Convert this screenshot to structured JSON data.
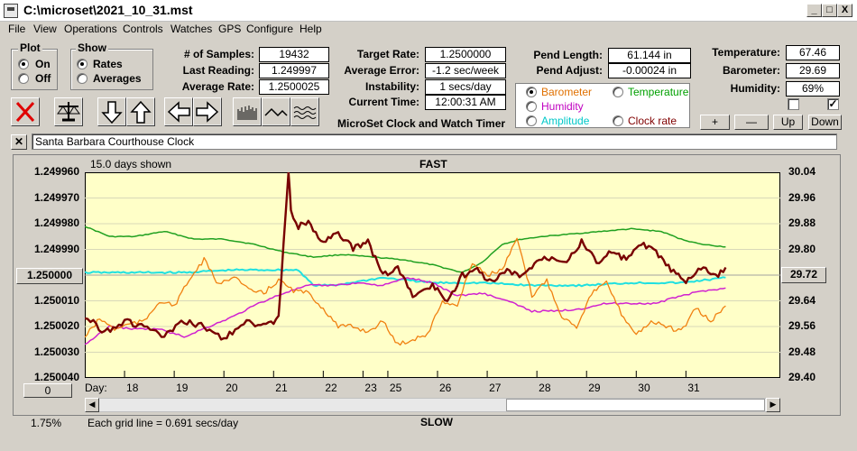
{
  "window": {
    "title": "C:\\microset\\2021_10_31.mst",
    "minimize": "_",
    "maximize": "□",
    "close": "X"
  },
  "menu": [
    "File",
    "View",
    "Operations",
    "Controls",
    "Watches",
    "GPS",
    "Configure",
    "Help"
  ],
  "plot_group": {
    "label": "Plot",
    "options": [
      "On",
      "Off"
    ],
    "selected": "On"
  },
  "show_group": {
    "label": "Show",
    "options": [
      "Rates",
      "Averages"
    ],
    "selected": "Rates"
  },
  "stats": {
    "samples_label": "# of Samples:",
    "samples_value": "19432",
    "last_label": "Last Reading:",
    "last_value": "1.249997",
    "avg_rate_label": "Average Rate:",
    "avg_rate_value": "1.2500025"
  },
  "rates": {
    "target_label": "Target Rate:",
    "target_value": "1.2500000",
    "error_label": "Average Error:",
    "error_value": "-1.2 sec/week",
    "instab_label": "Instability:",
    "instab_value": "1 secs/day",
    "time_label": "Current Time:",
    "time_value": "12:00:31 AM",
    "app_caption": "MicroSet Clock and Watch Timer"
  },
  "pendulum": {
    "length_label": "Pend Length:",
    "length_value": "61.144 in",
    "adjust_label": "Pend Adjust:",
    "adjust_value": "-0.00024 in"
  },
  "sensor_options": {
    "selected": "Barometer",
    "items": [
      {
        "label": "Barometer",
        "color": "#e07000"
      },
      {
        "label": "Temperature",
        "color": "#00a000"
      },
      {
        "label": "Humidity",
        "color": "#c000c0"
      },
      {
        "label": "Amplitude",
        "color": "#00c8c8"
      },
      {
        "label": "Clock rate",
        "color": "#800000"
      }
    ]
  },
  "environment": {
    "temp_label": "Temperature:",
    "temp_value": "67.46",
    "baro_label": "Barometer:",
    "baro_value": "29.69",
    "hum_label": "Humidity:",
    "hum_value": "69%",
    "check1": false,
    "check2": true
  },
  "scale_buttons": {
    "plus": "+",
    "minus": "—",
    "up": "Up",
    "down": "Down"
  },
  "clock_name": "Santa Barbara Courthouse Clock",
  "toolbar_icons": [
    "stop-icon",
    "balance-icon",
    "arrow-down-icon",
    "arrow-up-icon",
    "arrow-left-icon",
    "arrow-right-icon",
    "bars-icon",
    "wave-icon",
    "ripple-icon"
  ],
  "chart_data": {
    "type": "line",
    "days_shown": "15.0 days shown",
    "top_caption": "FAST",
    "bottom_caption": "SLOW",
    "grid_caption": "Each grid line = 0.691 secs/day",
    "zoom_pct": "1.75%",
    "left_button": "1.250000",
    "left_bottom_button": "0",
    "right_button": "29.72",
    "day_prefix": "Day:",
    "days": [
      "18",
      "19",
      "20",
      "21",
      "22",
      "23",
      "25",
      "26",
      "27",
      "28",
      "29",
      "30",
      "31"
    ],
    "day_positions": [
      17.8,
      18.8,
      19.8,
      20.8,
      21.8,
      22.6,
      23.1,
      24.1,
      25.1,
      26.1,
      27.1,
      28.1,
      29.1
    ],
    "x_range": [
      17.0,
      31.0
    ],
    "y_left_ticks": [
      "1.249960",
      "1.249970",
      "1.249980",
      "1.249990",
      "1.250000",
      "1.250010",
      "1.250020",
      "1.250030",
      "1.250040"
    ],
    "y_left_range": [
      1.24996,
      1.25004
    ],
    "y_right_ticks": [
      "30.04",
      "29.96",
      "29.88",
      "29.80",
      "29.72",
      "29.64",
      "29.56",
      "29.48",
      "29.40"
    ],
    "y_right_range": [
      29.4,
      30.04
    ],
    "series": [
      {
        "name": "Temperature",
        "color": "#20a020",
        "x": [
          17.0,
          17.5,
          18.0,
          18.6,
          19.2,
          19.8,
          20.4,
          21.0,
          21.6,
          22.2,
          22.8,
          23.4,
          24.0,
          24.6,
          25.0,
          25.4,
          25.8,
          26.2,
          26.8,
          27.4,
          28.0,
          28.6,
          29.0,
          29.4,
          29.9
        ],
        "y": [
          1.249981,
          1.249985,
          1.249985,
          1.249983,
          1.249986,
          1.249986,
          1.249988,
          1.249991,
          1.249993,
          1.249992,
          1.249993,
          1.249994,
          1.249996,
          1.249999,
          1.249995,
          1.249988,
          1.249986,
          1.249985,
          1.249984,
          1.249983,
          1.249982,
          1.249983,
          1.249986,
          1.249988,
          1.249989
        ]
      },
      {
        "name": "Amplitude",
        "color": "#20e0e0",
        "x": [
          17.0,
          18.0,
          19.0,
          20.0,
          21.0,
          21.3,
          21.6,
          22.0,
          23.0,
          24.0,
          25.0,
          26.0,
          27.0,
          28.0,
          29.0,
          29.9
        ],
        "y": [
          1.249999,
          1.249999,
          1.249999,
          1.249998,
          1.249998,
          1.249998,
          1.250004,
          1.250004,
          1.250001,
          1.250003,
          1.250003,
          1.250004,
          1.250004,
          1.250003,
          1.250003,
          1.250001
        ]
      },
      {
        "name": "Humidity",
        "color": "#d020d0",
        "x": [
          17.0,
          17.5,
          18.0,
          18.5,
          19.0,
          19.5,
          20.0,
          20.5,
          21.0,
          21.5,
          22.0,
          22.5,
          23.0,
          23.5,
          24.0,
          24.5,
          25.0,
          25.5,
          26.0,
          26.5,
          27.0,
          27.5,
          28.0,
          28.5,
          29.0,
          29.5,
          29.9
        ],
        "y": [
          1.250027,
          1.25002,
          1.250021,
          1.250021,
          1.250024,
          1.25002,
          1.250016,
          1.250011,
          1.250007,
          1.250004,
          1.250004,
          1.250003,
          1.250004,
          1.250001,
          1.250003,
          1.250008,
          1.250007,
          1.25001,
          1.250014,
          1.250014,
          1.250013,
          1.250011,
          1.250011,
          1.250011,
          1.250008,
          1.250006,
          1.250005
        ]
      },
      {
        "name": "Barometer",
        "color": "#f08010",
        "x": [
          17.0,
          17.3,
          17.6,
          17.9,
          18.2,
          18.5,
          18.8,
          19.1,
          19.4,
          19.7,
          20.0,
          20.3,
          20.6,
          20.9,
          21.2,
          21.5,
          21.8,
          22.1,
          22.4,
          22.7,
          23.0,
          23.3,
          23.6,
          23.9,
          24.2,
          24.5,
          24.8,
          25.1,
          25.4,
          25.7,
          26.0,
          26.3,
          26.6,
          26.9,
          27.2,
          27.5,
          27.8,
          28.1,
          28.4,
          28.7,
          29.0,
          29.3,
          29.6,
          29.9
        ],
        "y": [
          1.250024,
          1.250017,
          1.250021,
          1.250019,
          1.250018,
          1.25001,
          1.250012,
          1.250002,
          1.249994,
          1.250004,
          1.25,
          1.250006,
          1.250007,
          1.250002,
          1.250006,
          1.250007,
          1.250013,
          1.25002,
          1.25002,
          1.250022,
          1.250018,
          1.250027,
          1.250025,
          1.250023,
          1.25001,
          1.250012,
          1.249995,
          1.25,
          1.249998,
          1.249986,
          1.250008,
          1.250002,
          1.250016,
          1.25002,
          1.250007,
          1.250003,
          1.250015,
          1.250023,
          1.250018,
          1.25002,
          1.250022,
          1.250013,
          1.250018,
          1.250012
        ]
      },
      {
        "name": "Clock rate",
        "color": "#780000",
        "x": [
          17.0,
          17.4,
          17.8,
          18.2,
          18.6,
          19.0,
          19.4,
          19.8,
          20.2,
          20.6,
          20.9,
          21.1,
          21.15,
          21.3,
          21.5,
          21.8,
          22.1,
          22.4,
          22.7,
          23.0,
          23.3,
          23.6,
          24.0,
          24.3,
          24.6,
          24.9,
          25.2,
          25.5,
          25.8,
          26.1,
          26.4,
          26.7,
          27.0,
          27.3,
          27.6,
          27.9,
          28.2,
          28.5,
          28.8,
          29.1,
          29.4,
          29.7,
          29.9
        ],
        "y": [
          1.250016,
          1.250022,
          1.250018,
          1.25002,
          1.250024,
          1.250018,
          1.25002,
          1.250025,
          1.250018,
          1.25002,
          1.250017,
          1.24996,
          1.249975,
          1.249981,
          1.24998,
          1.249987,
          1.249983,
          1.24999,
          1.249987,
          1.25,
          1.249997,
          1.250008,
          1.250004,
          1.25001,
          1.25,
          1.249998,
          1.250003,
          1.249998,
          1.250001,
          1.249994,
          1.249993,
          1.249994,
          1.249987,
          1.249995,
          1.249991,
          1.249994,
          1.249988,
          1.249991,
          1.249998,
          1.250003,
          1.249997,
          1.250001,
          1.249997
        ]
      }
    ]
  }
}
